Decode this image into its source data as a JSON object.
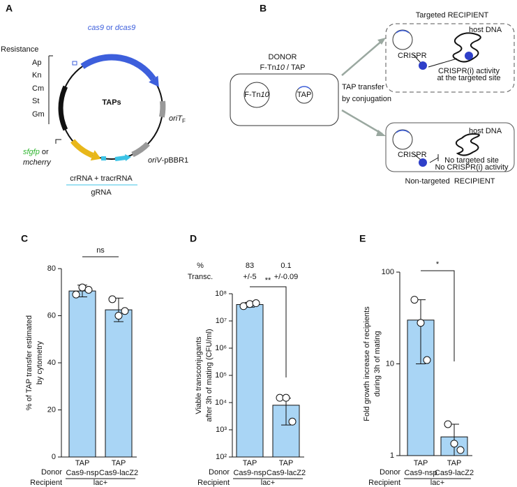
{
  "panel_a": {
    "label": "A",
    "gene": [
      "cas9",
      " or ",
      "dcas9"
    ],
    "resistance": "Resistance",
    "markers": [
      "Ap",
      "Kn",
      "Cm",
      "St",
      "Gm"
    ],
    "name": "TAPs",
    "ori_t": [
      "oriT",
      "F"
    ],
    "reporter": [
      "sfgfp",
      " or",
      "mcherry"
    ],
    "crrna": "crRNA + tracrRNA",
    "grna": "gRNA",
    "ori_v": [
      "oriV",
      "-pBBR1"
    ]
  },
  "panel_b": {
    "label": "B",
    "donor": "DONOR",
    "donor_content": [
      "F-Tn",
      "10",
      " / TAP"
    ],
    "plasmid_f": [
      "F-Tn",
      "10"
    ],
    "plasmid_tap": "TAP",
    "transfer": [
      "TAP transfer",
      "by conjugation"
    ],
    "targeted": {
      "title": "Targeted RECIPIENT",
      "host": "host DNA",
      "crispr": "CRISPR",
      "outcome": [
        "CRISPR(i) activity",
        "at the targeted site"
      ]
    },
    "non_targeted": {
      "title": "Non-targeted  RECIPIENT",
      "host": "host DNA",
      "crispr": "CRISPR",
      "outcome": [
        "No targeted site",
        "No CRISPR(i) activity"
      ]
    }
  },
  "chart_data": [
    {
      "type": "bar",
      "panel": "C",
      "ylabel": [
        "% of TAP transfer estimated",
        "by cytometry"
      ],
      "categories": [
        [
          "TAP",
          "Cas9-nsp"
        ],
        [
          "TAP",
          "Cas9-lacZ2"
        ]
      ],
      "values": [
        70.5,
        62.5
      ],
      "errors": [
        2.5,
        5
      ],
      "points": [
        [
          69,
          72,
          71
        ],
        [
          67,
          60,
          62
        ]
      ],
      "color": "#a9d5f5",
      "log": false,
      "ylim": [
        0,
        80
      ],
      "yticks": [
        0,
        20,
        40,
        60,
        80
      ],
      "significance": "ns",
      "donor": "Donor",
      "recipient": "Recipient",
      "recipient_value": "lac+"
    },
    {
      "type": "bar",
      "panel": "D",
      "ylabel": [
        "Viable transconjugants",
        "after 3h of mating (CFU/ml)"
      ],
      "categories": [
        [
          "TAP",
          "Cas9-nsp"
        ],
        [
          "TAP",
          "Cas9-lacZ2"
        ]
      ],
      "values": [
        40000000,
        8000
      ],
      "errors": [
        8000000,
        6500
      ],
      "points": [
        [
          35000000,
          42000000,
          45000000
        ],
        [
          15000,
          15000,
          2000
        ]
      ],
      "color": "#a9d5f5",
      "log": true,
      "ylim": [
        100,
        100000000
      ],
      "yticks": [
        {
          "value": 100,
          "label": "10²"
        },
        {
          "value": 1000,
          "label": "10³"
        },
        {
          "value": 10000,
          "label": "10⁴"
        },
        {
          "value": 100000,
          "label": "10⁵"
        },
        {
          "value": 1000000,
          "label": "10⁶"
        },
        {
          "value": 10000000,
          "label": "10⁷"
        },
        {
          "value": 100000000,
          "label": "10⁸"
        }
      ],
      "significance": "**",
      "annotation_header": [
        "%",
        "Transc."
      ],
      "annotations": [
        [
          "83",
          "+/-5"
        ],
        [
          "0.1",
          "+/-0.09"
        ]
      ],
      "donor": "Donor",
      "recipient": "Recipient",
      "recipient_value": "lac+"
    },
    {
      "type": "bar",
      "panel": "E",
      "ylabel": [
        "Fold growth increase of recipients",
        "during 3h of mating"
      ],
      "categories": [
        [
          "TAP",
          "Cas9-nsp"
        ],
        [
          "TAP",
          "Cas9-lacZ2"
        ]
      ],
      "values": [
        30,
        1.6
      ],
      "errors": [
        20,
        0.6
      ],
      "points": [
        [
          50,
          28,
          11
        ],
        [
          2.2,
          1.35,
          1.15
        ]
      ],
      "color": "#a9d5f5",
      "log": true,
      "ylim": [
        1,
        100
      ],
      "yticks": [
        1,
        10,
        100
      ],
      "significance": "*",
      "donor": "Donor",
      "recipient": "Recipient",
      "recipient_value": "lac+"
    }
  ]
}
